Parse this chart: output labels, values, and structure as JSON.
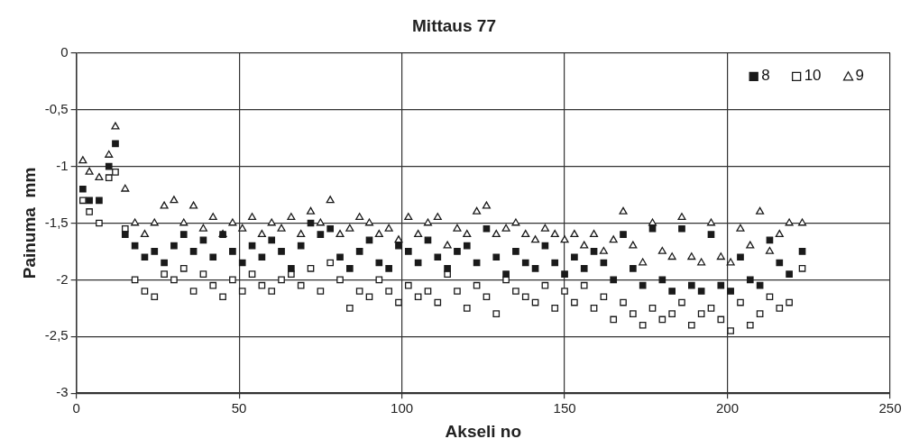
{
  "chart_data": {
    "type": "scatter",
    "title": "Mittaus 77",
    "xlabel": "Akseli no",
    "ylabel": "Painuma  mm",
    "x": [
      2,
      4,
      7,
      10,
      12,
      15,
      18,
      21,
      24,
      27,
      30,
      33,
      36,
      39,
      42,
      45,
      48,
      51,
      54,
      57,
      60,
      63,
      66,
      69,
      72,
      75,
      78,
      81,
      84,
      87,
      90,
      93,
      96,
      99,
      102,
      105,
      108,
      111,
      114,
      117,
      120,
      123,
      126,
      129,
      132,
      135,
      138,
      141,
      144,
      147,
      150,
      153,
      156,
      159,
      162,
      165,
      168,
      171,
      174,
      177,
      180,
      183,
      186,
      189,
      192,
      195,
      198,
      201,
      204,
      207,
      210,
      213,
      216,
      219,
      223
    ],
    "series": [
      {
        "name": "8",
        "color": "#1a1a1a",
        "marker": "square",
        "values": [
          -1.2,
          -1.3,
          -1.3,
          -1.0,
          -0.8,
          -1.6,
          -1.7,
          -1.8,
          -1.75,
          -1.85,
          -1.7,
          -1.6,
          -1.75,
          -1.65,
          -1.8,
          -1.6,
          -1.75,
          -1.85,
          -1.7,
          -1.8,
          -1.65,
          -1.75,
          -1.9,
          -1.7,
          -1.5,
          -1.6,
          -1.55,
          -1.8,
          -1.9,
          -1.75,
          -1.65,
          -1.85,
          -1.9,
          -1.7,
          -1.75,
          -1.85,
          -1.65,
          -1.8,
          -1.9,
          -1.75,
          -1.7,
          -1.85,
          -1.55,
          -1.8,
          -1.95,
          -1.75,
          -1.85,
          -1.9,
          -1.7,
          -1.85,
          -1.95,
          -1.8,
          -1.9,
          -1.75,
          -1.85,
          -2.0,
          -1.6,
          -1.9,
          -2.05,
          -1.55,
          -2.0,
          -2.1,
          -1.55,
          -2.05,
          -2.1,
          -1.6,
          -2.05,
          -2.1,
          -1.8,
          -2.0,
          -2.05,
          -1.65,
          -1.85,
          -1.95,
          -1.75
        ]
      },
      {
        "name": "10",
        "color": "#1a1a1a",
        "marker": "square",
        "values": [
          -1.3,
          -1.4,
          -1.5,
          -1.1,
          -1.05,
          -1.55,
          -2.0,
          -2.1,
          -2.15,
          -1.95,
          -2.0,
          -1.9,
          -2.1,
          -1.95,
          -2.05,
          -2.15,
          -2.0,
          -2.1,
          -1.95,
          -2.05,
          -2.1,
          -2.0,
          -1.95,
          -2.05,
          -1.9,
          -2.1,
          -1.85,
          -2.0,
          -2.25,
          -2.1,
          -2.15,
          -2.0,
          -2.1,
          -2.2,
          -2.05,
          -2.15,
          -2.1,
          -2.2,
          -1.95,
          -2.1,
          -2.25,
          -2.05,
          -2.15,
          -2.3,
          -2.0,
          -2.1,
          -2.15,
          -2.2,
          -2.05,
          -2.25,
          -2.1,
          -2.2,
          -2.05,
          -2.25,
          -2.15,
          -2.35,
          -2.2,
          -2.3,
          -2.4,
          -2.25,
          -2.35,
          -2.3,
          -2.2,
          -2.4,
          -2.3,
          -2.25,
          -2.35,
          -2.45,
          -2.2,
          -2.4,
          -2.3,
          -2.15,
          -2.25,
          -2.2,
          -1.9
        ]
      },
      {
        "name": "9",
        "color": "#1a1a1a",
        "marker": "triangle",
        "values": [
          -0.95,
          -1.05,
          -1.1,
          -0.9,
          -0.65,
          -1.2,
          -1.5,
          -1.6,
          -1.5,
          -1.35,
          -1.3,
          -1.5,
          -1.35,
          -1.55,
          -1.45,
          -1.6,
          -1.5,
          -1.55,
          -1.45,
          -1.6,
          -1.5,
          -1.55,
          -1.45,
          -1.6,
          -1.4,
          -1.5,
          -1.3,
          -1.6,
          -1.55,
          -1.45,
          -1.5,
          -1.6,
          -1.55,
          -1.65,
          -1.45,
          -1.6,
          -1.5,
          -1.45,
          -1.7,
          -1.55,
          -1.6,
          -1.4,
          -1.35,
          -1.6,
          -1.55,
          -1.5,
          -1.6,
          -1.65,
          -1.55,
          -1.6,
          -1.65,
          -1.6,
          -1.7,
          -1.6,
          -1.75,
          -1.65,
          -1.4,
          -1.7,
          -1.85,
          -1.5,
          -1.75,
          -1.8,
          -1.45,
          -1.8,
          -1.85,
          -1.5,
          -1.8,
          -1.85,
          -1.55,
          -1.7,
          -1.4,
          -1.75,
          -1.6,
          -1.5,
          -1.5
        ]
      }
    ],
    "xlim": [
      0,
      250
    ],
    "xticks": [
      0,
      50,
      100,
      150,
      200,
      250
    ],
    "ylim": [
      -3,
      0
    ],
    "yticks": [
      {
        "value": -3,
        "label": "-3"
      },
      {
        "value": -2.5,
        "label": "-2,5"
      },
      {
        "value": -2,
        "label": "-2"
      },
      {
        "value": -1.5,
        "label": "-1,5"
      },
      {
        "value": -1,
        "label": "-1"
      },
      {
        "value": -0.5,
        "label": "-0,5"
      },
      {
        "value": 0,
        "label": "0"
      }
    ],
    "grid": true,
    "legend": "top right"
  }
}
